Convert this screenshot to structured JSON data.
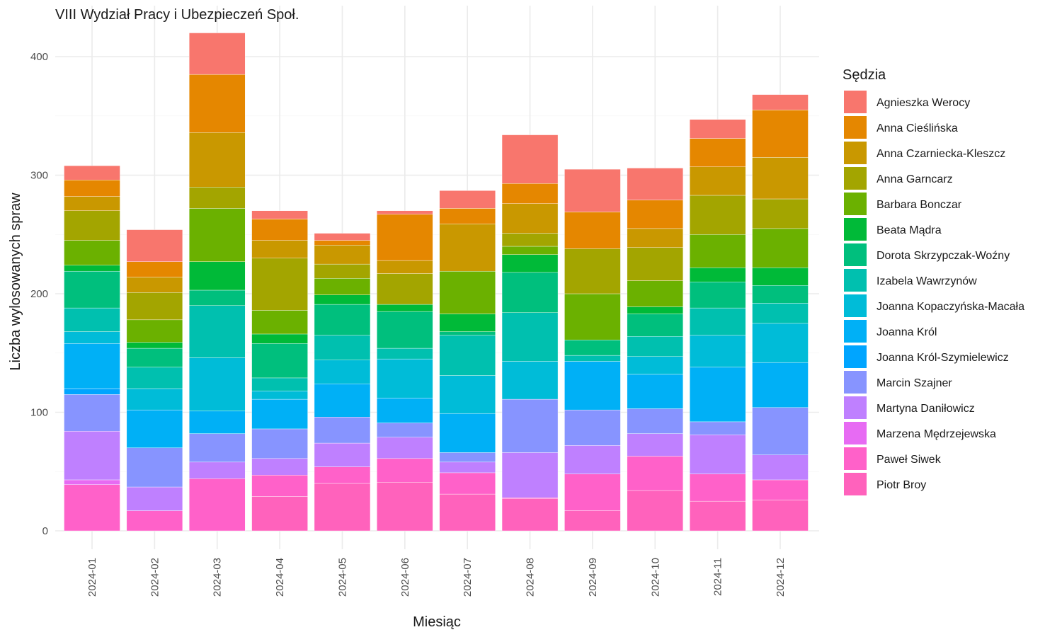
{
  "chart_data": {
    "type": "bar",
    "stacked": true,
    "title": "VIII Wydział Pracy i Ubezpieczeń Społ.",
    "xlabel": "Miesiąc",
    "ylabel": "Liczba wylosowanych spraw",
    "ylim": [
      0,
      420
    ],
    "yticks": [
      0,
      100,
      200,
      300,
      400
    ],
    "grid": true,
    "legend_title": "Sędzia",
    "legend_position": "right",
    "categories": [
      "2024-01",
      "2024-02",
      "2024-03",
      "2024-04",
      "2024-05",
      "2024-06",
      "2024-07",
      "2024-08",
      "2024-09",
      "2024-10",
      "2024-11",
      "2024-12"
    ],
    "series": [
      {
        "name": "Agnieszka Werocy",
        "color": "#F8766D",
        "values": [
          12,
          27,
          35,
          7,
          6,
          3,
          15,
          41,
          36,
          27,
          16,
          13
        ]
      },
      {
        "name": "Anna Cieślińska",
        "color": "#E58700",
        "values": [
          14,
          13,
          49,
          18,
          4,
          39,
          13,
          17,
          31,
          24,
          24,
          40
        ]
      },
      {
        "name": "Anna Czarniecka-Kleszcz",
        "color": "#C99800",
        "values": [
          12,
          13,
          46,
          15,
          16,
          11,
          40,
          25,
          0,
          16,
          24,
          35
        ]
      },
      {
        "name": "Anna Garncarz",
        "color": "#A3A500",
        "values": [
          25,
          23,
          18,
          44,
          12,
          26,
          0,
          11,
          38,
          28,
          33,
          25
        ]
      },
      {
        "name": "Barbara Bonczar",
        "color": "#6BB100",
        "values": [
          21,
          19,
          45,
          20,
          14,
          0,
          36,
          7,
          39,
          22,
          28,
          33
        ]
      },
      {
        "name": "Beata Mądra",
        "color": "#00BA38",
        "values": [
          5,
          5,
          24,
          8,
          8,
          6,
          15,
          15,
          0,
          6,
          12,
          15
        ]
      },
      {
        "name": "Dorota Skrzypczak-Woźny",
        "color": "#00BF7D",
        "values": [
          31,
          16,
          13,
          29,
          26,
          31,
          3,
          34,
          13,
          19,
          22,
          15
        ]
      },
      {
        "name": "Izabela Wawrzynów",
        "color": "#00C0AF",
        "values": [
          20,
          18,
          44,
          11,
          21,
          9,
          34,
          41,
          5,
          17,
          23,
          17
        ]
      },
      {
        "name": "Joanna Kopaczyńska-Macała",
        "color": "#00BCD8",
        "values": [
          10,
          18,
          45,
          7,
          20,
          33,
          32,
          32,
          0,
          15,
          27,
          33
        ]
      },
      {
        "name": "Joanna Król",
        "color": "#00B0F6",
        "values": [
          38,
          32,
          19,
          25,
          28,
          21,
          33,
          0,
          41,
          29,
          46,
          38
        ]
      },
      {
        "name": "Joanna Król-Szymielewicz",
        "color": "#00A5FF",
        "values": [
          5,
          0,
          0,
          0,
          0,
          0,
          0,
          0,
          0,
          0,
          0,
          0
        ]
      },
      {
        "name": "Marcin Szajner",
        "color": "#8794FF",
        "values": [
          31,
          33,
          24,
          25,
          22,
          12,
          8,
          45,
          30,
          21,
          11,
          40
        ]
      },
      {
        "name": "Martyna Daniłowicz",
        "color": "#BF80FF",
        "values": [
          41,
          20,
          14,
          14,
          20,
          18,
          9,
          38,
          24,
          19,
          33,
          21
        ]
      },
      {
        "name": "Marzena Mędrzejewska",
        "color": "#E76BF3",
        "values": [
          4,
          0,
          0,
          0,
          0,
          0,
          0,
          0,
          0,
          0,
          0,
          0
        ]
      },
      {
        "name": "Paweł Siwek",
        "color": "#FF61C9",
        "values": [
          39,
          17,
          44,
          18,
          14,
          20,
          18,
          1,
          31,
          29,
          23,
          17
        ]
      },
      {
        "name": "Piotr Broy",
        "color": "#FF62BC",
        "values": [
          0,
          0,
          0,
          29,
          40,
          41,
          31,
          27,
          17,
          34,
          25,
          26
        ]
      }
    ]
  }
}
